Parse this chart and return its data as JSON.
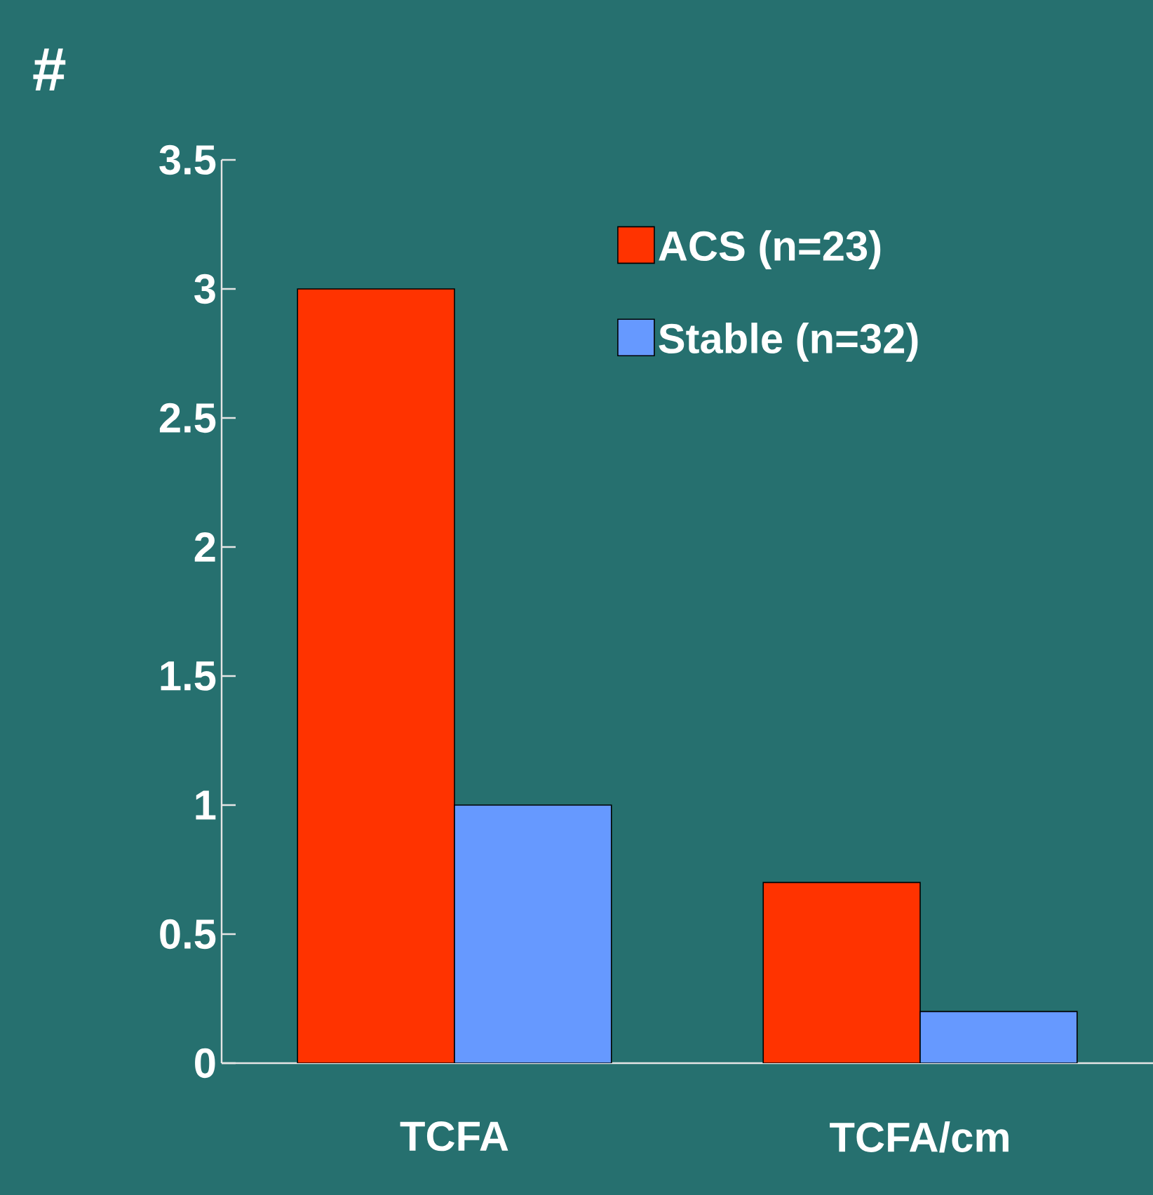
{
  "chart_data": {
    "type": "bar",
    "ylabel": "#",
    "categories": [
      "TCFA",
      "TCFA/cm"
    ],
    "series": [
      {
        "name": "ACS (n=23)",
        "color": "#ff3300",
        "values": [
          3,
          0.7
        ]
      },
      {
        "name": "Stable (n=32)",
        "color": "#6699ff",
        "values": [
          1,
          0.2
        ]
      }
    ],
    "ylim": [
      0,
      3.5
    ],
    "yticks": [
      0,
      0.5,
      1,
      1.5,
      2,
      2.5,
      3,
      3.5
    ],
    "grid": false,
    "legend": "top right"
  }
}
